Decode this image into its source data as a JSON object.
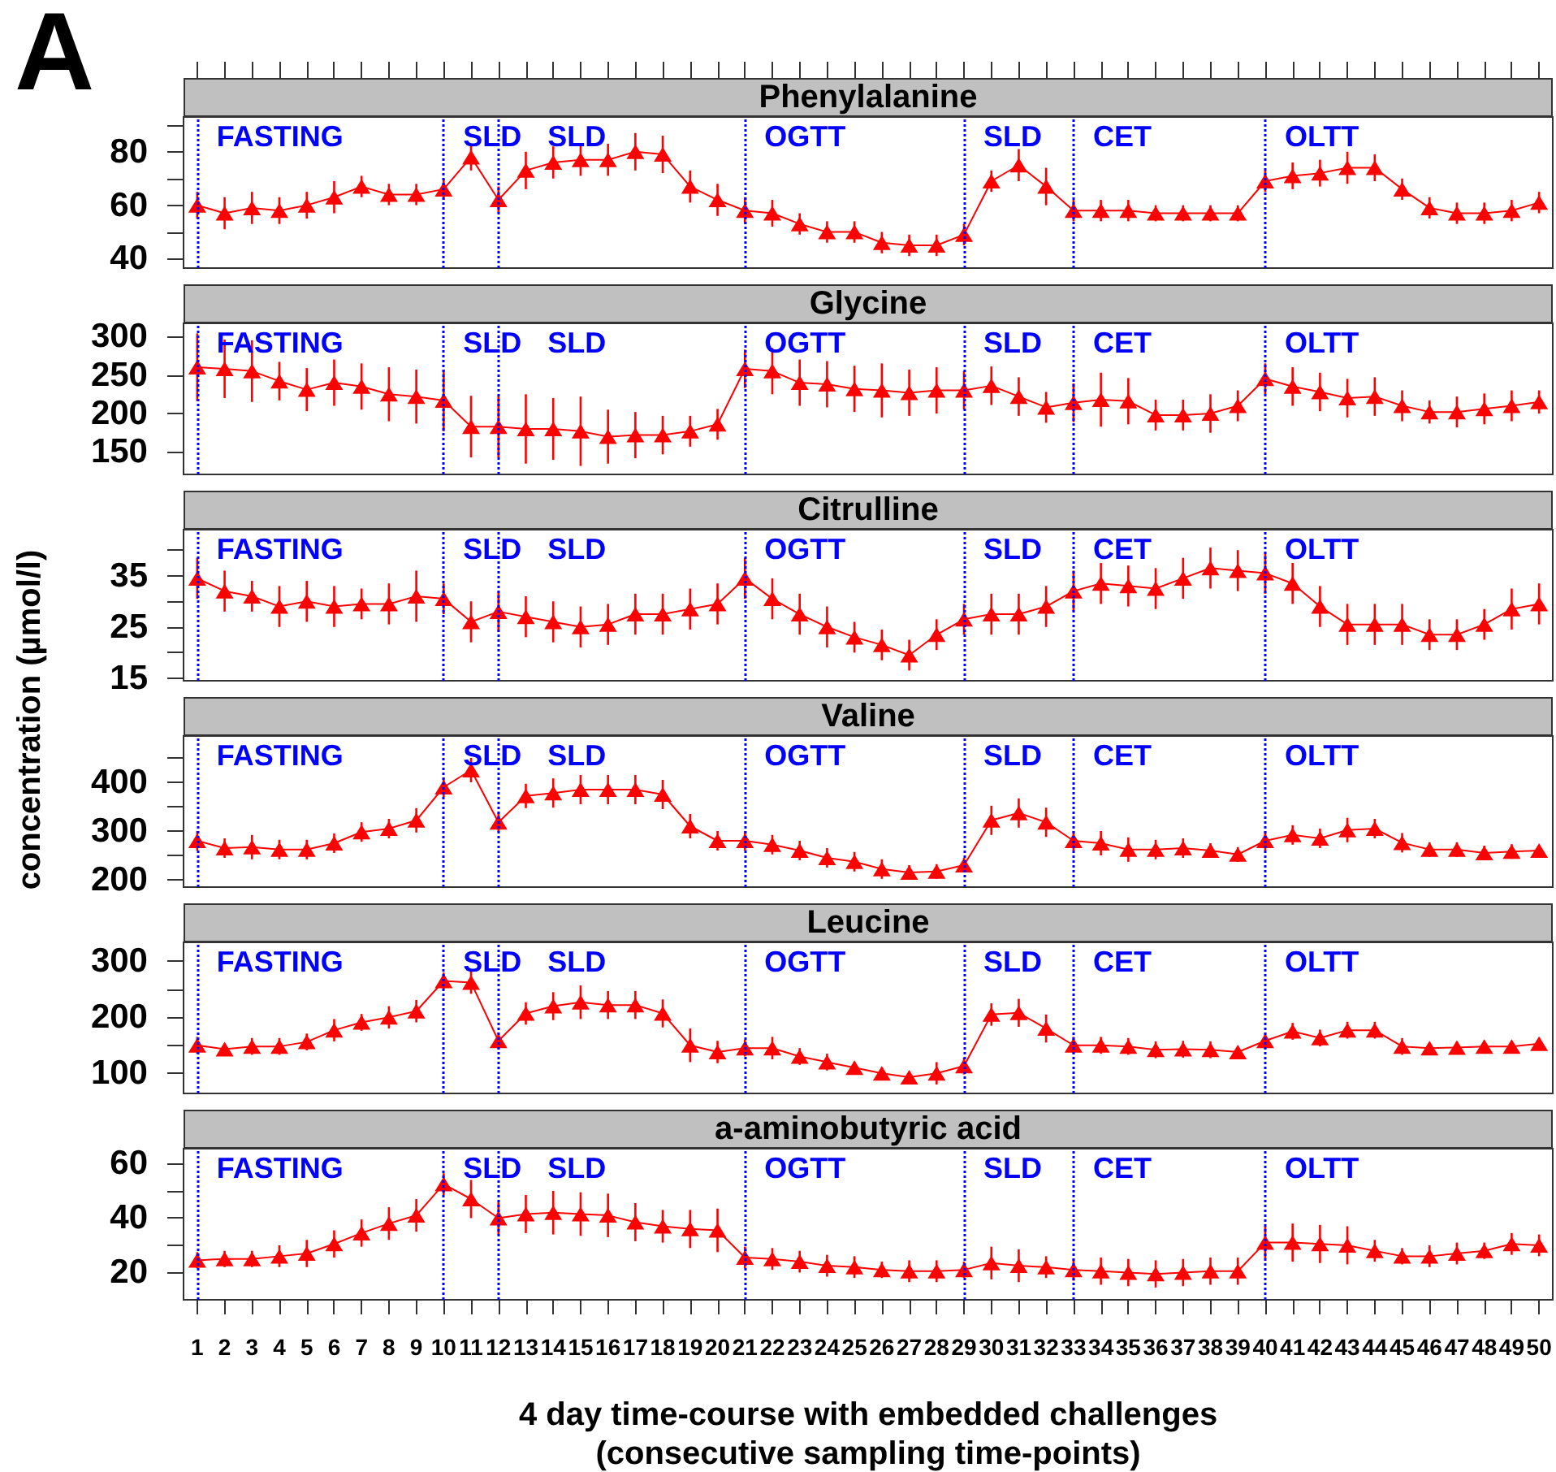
{
  "chart_data": [
    {
      "type": "line",
      "title": "Phenylalanine",
      "annotations": [
        "A"
      ],
      "x": [
        1,
        2,
        3,
        4,
        5,
        6,
        7,
        8,
        9,
        10,
        11,
        12,
        13,
        14,
        15,
        16,
        17,
        18,
        19,
        20,
        21,
        22,
        23,
        24,
        25,
        26,
        27,
        28,
        29,
        30,
        31,
        32,
        33,
        34,
        35,
        36,
        37,
        38,
        39,
        40,
        41,
        42,
        43,
        44,
        45,
        46,
        47,
        48,
        49,
        50
      ],
      "values": [
        60,
        57,
        59,
        58,
        60,
        63,
        67,
        64,
        64,
        66,
        78,
        62,
        73,
        76,
        77,
        77,
        80,
        79,
        67,
        62,
        58,
        57,
        53,
        50,
        50,
        46,
        45,
        45,
        49,
        69,
        75,
        67,
        58,
        58,
        58,
        57,
        57,
        57,
        57,
        69,
        71,
        72,
        74,
        74,
        66,
        59,
        57,
        57,
        58,
        61
      ],
      "errors": [
        5,
        6,
        6,
        5,
        5,
        6,
        4,
        4,
        4,
        4,
        5,
        5,
        7,
        6,
        6,
        6,
        7,
        7,
        6,
        6,
        5,
        5,
        4,
        4,
        4,
        4,
        4,
        4,
        4,
        4,
        6,
        7,
        4,
        4,
        4,
        3,
        3,
        3,
        3,
        4,
        5,
        5,
        6,
        5,
        4,
        4,
        4,
        4,
        4,
        4
      ],
      "color": "#ff0000",
      "marker": "triangle",
      "xlim": [
        0.5,
        50.5
      ],
      "xticks": [
        1,
        2,
        3,
        4,
        5,
        6,
        7,
        8,
        9,
        10,
        11,
        12,
        13,
        14,
        15,
        16,
        17,
        18,
        19,
        20,
        21,
        22,
        23,
        24,
        25,
        26,
        27,
        28,
        29,
        30,
        31,
        32,
        33,
        34,
        35,
        36,
        37,
        38,
        39,
        40,
        41,
        42,
        43,
        44,
        45,
        46,
        47,
        48,
        49,
        50
      ],
      "ylim": [
        36.5,
        93
      ],
      "yticks": [
        40,
        {
          "value": 50,
          "label": null
        },
        60,
        {
          "value": 70,
          "label": null
        },
        80,
        {
          "value": 90,
          "label": null
        }
      ],
      "ref_lines": [
        {
          "axis": "x",
          "value": 1,
          "label": "FASTING",
          "color": "#0000ff",
          "line_style": "dotted"
        },
        {
          "axis": "x",
          "value": 10,
          "label": "SLD",
          "color": "#0000ff",
          "line_style": "dotted"
        },
        {
          "axis": "x",
          "value": 12,
          "label": "SLD",
          "color": "#0000ff",
          "line_style": "dotted"
        },
        {
          "axis": "x",
          "value": 21,
          "label": "OGTT",
          "color": "#0000ff",
          "line_style": "dotted"
        },
        {
          "axis": "x",
          "value": 29,
          "label": "SLD",
          "color": "#0000ff",
          "line_style": "dotted"
        },
        {
          "axis": "x",
          "value": 33,
          "label": "CET",
          "color": "#0000ff",
          "line_style": "dotted"
        },
        {
          "axis": "x",
          "value": 40,
          "label": "OLTT",
          "color": "#0000ff",
          "line_style": "dotted"
        }
      ],
      "tick_labels": "y",
      "grid": false
    },
    {
      "type": "line",
      "title": "Glycine",
      "x": [
        1,
        2,
        3,
        4,
        5,
        6,
        7,
        8,
        9,
        10,
        11,
        12,
        13,
        14,
        15,
        16,
        17,
        18,
        19,
        20,
        21,
        22,
        23,
        24,
        25,
        26,
        27,
        28,
        29,
        30,
        31,
        32,
        33,
        34,
        35,
        36,
        37,
        38,
        39,
        40,
        41,
        42,
        43,
        44,
        45,
        46,
        47,
        48,
        49,
        50
      ],
      "values": [
        260,
        258,
        255,
        242,
        231,
        240,
        235,
        225,
        222,
        217,
        183,
        183,
        180,
        180,
        177,
        170,
        172,
        172,
        177,
        186,
        258,
        255,
        240,
        238,
        232,
        230,
        227,
        230,
        230,
        236,
        222,
        208,
        214,
        218,
        216,
        198,
        198,
        200,
        210,
        245,
        235,
        228,
        220,
        222,
        210,
        202,
        202,
        206,
        210,
        215
      ],
      "errors": [
        44,
        38,
        40,
        25,
        28,
        30,
        30,
        35,
        35,
        40,
        40,
        40,
        45,
        40,
        45,
        35,
        30,
        25,
        20,
        20,
        25,
        30,
        30,
        30,
        30,
        35,
        30,
        30,
        25,
        25,
        25,
        20,
        25,
        35,
        30,
        20,
        20,
        25,
        20,
        20,
        25,
        25,
        25,
        25,
        20,
        15,
        20,
        20,
        20,
        15
      ],
      "color": "#ff0000",
      "marker": "triangle",
      "xlim": [
        0.5,
        50.5
      ],
      "ylim": [
        121,
        317
      ],
      "yticks": [
        150,
        200,
        250,
        300
      ],
      "ref_lines": [
        {
          "axis": "x",
          "value": 1,
          "label": "FASTING",
          "color": "#0000ff",
          "line_style": "dotted"
        },
        {
          "axis": "x",
          "value": 10,
          "label": "SLD",
          "color": "#0000ff",
          "line_style": "dotted"
        },
        {
          "axis": "x",
          "value": 12,
          "label": "SLD",
          "color": "#0000ff",
          "line_style": "dotted"
        },
        {
          "axis": "x",
          "value": 21,
          "label": "OGTT",
          "color": "#0000ff",
          "line_style": "dotted"
        },
        {
          "axis": "x",
          "value": 29,
          "label": "SLD",
          "color": "#0000ff",
          "line_style": "dotted"
        },
        {
          "axis": "x",
          "value": 33,
          "label": "CET",
          "color": "#0000ff",
          "line_style": "dotted"
        },
        {
          "axis": "x",
          "value": 40,
          "label": "OLTT",
          "color": "#0000ff",
          "line_style": "dotted"
        }
      ],
      "tick_labels": "y",
      "grid": false
    },
    {
      "type": "line",
      "title": "Citrulline",
      "x": [
        1,
        2,
        3,
        4,
        5,
        6,
        7,
        8,
        9,
        10,
        11,
        12,
        13,
        14,
        15,
        16,
        17,
        18,
        19,
        20,
        21,
        22,
        23,
        24,
        25,
        26,
        27,
        28,
        29,
        30,
        31,
        32,
        33,
        34,
        35,
        36,
        37,
        38,
        39,
        40,
        41,
        42,
        43,
        44,
        45,
        46,
        47,
        48,
        49,
        50
      ],
      "values": [
        34.5,
        32,
        31,
        29,
        30,
        29,
        29.5,
        29.5,
        31,
        30.5,
        26,
        28,
        27,
        26,
        25,
        25.5,
        27.5,
        27.5,
        28.5,
        29.5,
        34.5,
        30.5,
        27.5,
        25,
        23,
        21.5,
        19.5,
        23.5,
        26.5,
        27.5,
        27.5,
        29,
        32,
        33.5,
        33,
        32.5,
        34.5,
        36.5,
        36,
        35.5,
        33.5,
        29,
        25.5,
        25.5,
        25.5,
        23.5,
        23.5,
        25.5,
        28.5,
        29.5
      ],
      "errors": [
        4,
        4,
        3,
        4,
        4,
        4,
        3,
        4,
        5,
        3,
        4,
        4,
        4,
        4,
        4,
        4,
        4,
        4,
        4,
        4,
        4,
        4,
        4,
        4,
        3,
        3,
        3,
        3,
        3,
        4,
        4,
        4,
        4,
        4,
        4,
        4,
        4,
        4,
        4,
        4,
        4,
        4,
        4,
        4,
        4,
        3,
        3,
        3,
        4,
        4
      ],
      "color": "#ff0000",
      "marker": "triangle",
      "xlim": [
        0.5,
        50.5
      ],
      "ylim": [
        14.5,
        44
      ],
      "yticks": [
        15,
        {
          "value": 20,
          "label": null
        },
        25,
        {
          "value": 30,
          "label": null
        },
        35,
        {
          "value": 40,
          "label": null
        }
      ],
      "ref_lines": [
        {
          "axis": "x",
          "value": 1,
          "label": "FASTING",
          "color": "#0000ff",
          "line_style": "dotted"
        },
        {
          "axis": "x",
          "value": 10,
          "label": "SLD",
          "color": "#0000ff",
          "line_style": "dotted"
        },
        {
          "axis": "x",
          "value": 12,
          "label": "SLD",
          "color": "#0000ff",
          "line_style": "dotted"
        },
        {
          "axis": "x",
          "value": 21,
          "label": "OGTT",
          "color": "#0000ff",
          "line_style": "dotted"
        },
        {
          "axis": "x",
          "value": 29,
          "label": "SLD",
          "color": "#0000ff",
          "line_style": "dotted"
        },
        {
          "axis": "x",
          "value": 33,
          "label": "CET",
          "color": "#0000ff",
          "line_style": "dotted"
        },
        {
          "axis": "x",
          "value": 40,
          "label": "OLTT",
          "color": "#0000ff",
          "line_style": "dotted"
        }
      ],
      "tick_labels": "y",
      "grid": false
    },
    {
      "type": "line",
      "title": "Valine",
      "ylabel": "concentration (µmol/l)",
      "x": [
        1,
        2,
        3,
        4,
        5,
        6,
        7,
        8,
        9,
        10,
        11,
        12,
        13,
        14,
        15,
        16,
        17,
        18,
        19,
        20,
        21,
        22,
        23,
        24,
        25,
        26,
        27,
        28,
        29,
        30,
        31,
        32,
        33,
        34,
        35,
        36,
        37,
        38,
        39,
        40,
        41,
        42,
        43,
        44,
        45,
        46,
        47,
        48,
        49,
        50
      ],
      "values": [
        280,
        265,
        267,
        262,
        262,
        275,
        298,
        305,
        322,
        390,
        425,
        318,
        372,
        378,
        385,
        385,
        385,
        375,
        310,
        280,
        280,
        272,
        260,
        245,
        237,
        222,
        215,
        217,
        230,
        322,
        337,
        318,
        280,
        275,
        262,
        262,
        265,
        260,
        252,
        280,
        292,
        285,
        302,
        305,
        276,
        262,
        262,
        255,
        258,
        260
      ],
      "errors": [
        20,
        20,
        25,
        20,
        20,
        20,
        20,
        20,
        25,
        20,
        25,
        20,
        25,
        30,
        30,
        30,
        30,
        30,
        25,
        20,
        20,
        20,
        20,
        20,
        20,
        20,
        15,
        15,
        15,
        30,
        30,
        30,
        20,
        25,
        25,
        20,
        20,
        15,
        15,
        20,
        20,
        20,
        25,
        20,
        20,
        15,
        15,
        15,
        15,
        10
      ],
      "color": "#ff0000",
      "marker": "triangle",
      "xlim": [
        0.5,
        50.5
      ],
      "ylim": [
        185,
        495
      ],
      "yticks": [
        200,
        {
          "value": 250,
          "label": null
        },
        300,
        {
          "value": 350,
          "label": null
        },
        400,
        {
          "value": 450,
          "label": null
        }
      ],
      "ref_lines": [
        {
          "axis": "x",
          "value": 1,
          "label": "FASTING",
          "color": "#0000ff",
          "line_style": "dotted"
        },
        {
          "axis": "x",
          "value": 10,
          "label": "SLD",
          "color": "#0000ff",
          "line_style": "dotted"
        },
        {
          "axis": "x",
          "value": 12,
          "label": "SLD",
          "color": "#0000ff",
          "line_style": "dotted"
        },
        {
          "axis": "x",
          "value": 21,
          "label": "OGTT",
          "color": "#0000ff",
          "line_style": "dotted"
        },
        {
          "axis": "x",
          "value": 29,
          "label": "SLD",
          "color": "#0000ff",
          "line_style": "dotted"
        },
        {
          "axis": "x",
          "value": 33,
          "label": "CET",
          "color": "#0000ff",
          "line_style": "dotted"
        },
        {
          "axis": "x",
          "value": 40,
          "label": "OLTT",
          "color": "#0000ff",
          "line_style": "dotted"
        }
      ],
      "tick_labels": "y",
      "grid": false
    },
    {
      "type": "line",
      "title": "Leucine",
      "x": [
        1,
        2,
        3,
        4,
        5,
        6,
        7,
        8,
        9,
        10,
        11,
        12,
        13,
        14,
        15,
        16,
        17,
        18,
        19,
        20,
        21,
        22,
        23,
        24,
        25,
        26,
        27,
        28,
        29,
        30,
        31,
        32,
        33,
        34,
        35,
        36,
        37,
        38,
        39,
        40,
        41,
        42,
        43,
        44,
        45,
        46,
        47,
        48,
        49,
        50
      ],
      "values": [
        150,
        143,
        148,
        148,
        156,
        177,
        191,
        200,
        211,
        265,
        262,
        158,
        207,
        220,
        227,
        222,
        222,
        207,
        150,
        138,
        145,
        145,
        130,
        120,
        110,
        100,
        93,
        100,
        113,
        205,
        208,
        180,
        150,
        150,
        148,
        142,
        143,
        142,
        138,
        158,
        175,
        163,
        177,
        177,
        148,
        145,
        146,
        148,
        148,
        153
      ],
      "errors": [
        15,
        10,
        15,
        15,
        15,
        20,
        15,
        20,
        20,
        15,
        20,
        15,
        20,
        25,
        30,
        25,
        25,
        25,
        30,
        20,
        15,
        20,
        15,
        15,
        10,
        10,
        10,
        20,
        15,
        20,
        25,
        25,
        15,
        15,
        15,
        15,
        15,
        15,
        10,
        15,
        15,
        15,
        15,
        15,
        15,
        10,
        10,
        10,
        10,
        10
      ],
      "color": "#ff0000",
      "marker": "triangle",
      "xlim": [
        0.5,
        50.5
      ],
      "ylim": [
        64,
        334
      ],
      "yticks": [
        100,
        {
          "value": 150,
          "label": null
        },
        200,
        {
          "value": 250,
          "label": null
        },
        300
      ],
      "ref_lines": [
        {
          "axis": "x",
          "value": 1,
          "label": "FASTING",
          "color": "#0000ff",
          "line_style": "dotted"
        },
        {
          "axis": "x",
          "value": 10,
          "label": "SLD",
          "color": "#0000ff",
          "line_style": "dotted"
        },
        {
          "axis": "x",
          "value": 12,
          "label": "SLD",
          "color": "#0000ff",
          "line_style": "dotted"
        },
        {
          "axis": "x",
          "value": 21,
          "label": "OGTT",
          "color": "#0000ff",
          "line_style": "dotted"
        },
        {
          "axis": "x",
          "value": 29,
          "label": "SLD",
          "color": "#0000ff",
          "line_style": "dotted"
        },
        {
          "axis": "x",
          "value": 33,
          "label": "CET",
          "color": "#0000ff",
          "line_style": "dotted"
        },
        {
          "axis": "x",
          "value": 40,
          "label": "OLTT",
          "color": "#0000ff",
          "line_style": "dotted"
        }
      ],
      "tick_labels": "y",
      "grid": false
    },
    {
      "type": "line",
      "title": "a-aminobutyric acid",
      "xlabel": "4 day time-course with embedded challenges\n(consecutive sampling time-points)",
      "x": [
        1,
        2,
        3,
        4,
        5,
        6,
        7,
        8,
        9,
        10,
        11,
        12,
        13,
        14,
        15,
        16,
        17,
        18,
        19,
        20,
        21,
        22,
        23,
        24,
        25,
        26,
        27,
        28,
        29,
        30,
        31,
        32,
        33,
        34,
        35,
        36,
        37,
        38,
        39,
        40,
        41,
        42,
        43,
        44,
        45,
        46,
        47,
        48,
        49,
        50
      ],
      "values": [
        24.5,
        25,
        25,
        26,
        27,
        30.5,
        34.5,
        38,
        41,
        52.5,
        47,
        40,
        41.5,
        42,
        41.5,
        41,
        38.5,
        37,
        36,
        35.5,
        25.5,
        25,
        24,
        22.5,
        22,
        21,
        20.5,
        20.5,
        21,
        23.5,
        22.5,
        22,
        21,
        20.5,
        20,
        19.5,
        20,
        20.5,
        20.5,
        31,
        31,
        30.5,
        30,
        28,
        26,
        26,
        27,
        28,
        30.5,
        30
      ],
      "errors": [
        3,
        3,
        3,
        4,
        5,
        5,
        5,
        6,
        6,
        4,
        7,
        6,
        7,
        8,
        8,
        8,
        7,
        6,
        7,
        8,
        4,
        4,
        4,
        4,
        4,
        3,
        4,
        4,
        3,
        6,
        6,
        4,
        4,
        5,
        5,
        5,
        5,
        5,
        5,
        6,
        7,
        7,
        7,
        4,
        3,
        4,
        4,
        3,
        4,
        4
      ],
      "color": "#ff0000",
      "marker": "triangle",
      "xlim": [
        0.5,
        50.5
      ],
      "xticks": [
        1,
        2,
        3,
        4,
        5,
        6,
        7,
        8,
        9,
        10,
        11,
        12,
        13,
        14,
        15,
        16,
        17,
        18,
        19,
        20,
        21,
        22,
        23,
        24,
        25,
        26,
        27,
        28,
        29,
        30,
        31,
        32,
        33,
        34,
        35,
        36,
        37,
        38,
        39,
        40,
        41,
        42,
        43,
        44,
        45,
        46,
        47,
        48,
        49,
        50
      ],
      "ylim": [
        10,
        65.5
      ],
      "yticks": [
        20,
        {
          "value": 30,
          "label": null
        },
        40,
        {
          "value": 50,
          "label": null
        },
        60
      ],
      "ref_lines": [
        {
          "axis": "x",
          "value": 1,
          "label": "FASTING",
          "color": "#0000ff",
          "line_style": "dotted"
        },
        {
          "axis": "x",
          "value": 10,
          "label": "SLD",
          "color": "#0000ff",
          "line_style": "dotted"
        },
        {
          "axis": "x",
          "value": 12,
          "label": "SLD",
          "color": "#0000ff",
          "line_style": "dotted"
        },
        {
          "axis": "x",
          "value": 21,
          "label": "OGTT",
          "color": "#0000ff",
          "line_style": "dotted"
        },
        {
          "axis": "x",
          "value": 29,
          "label": "SLD",
          "color": "#0000ff",
          "line_style": "dotted"
        },
        {
          "axis": "x",
          "value": 33,
          "label": "CET",
          "color": "#0000ff",
          "line_style": "dotted"
        },
        {
          "axis": "x",
          "value": 40,
          "label": "OLTT",
          "color": "#0000ff",
          "line_style": "dotted"
        }
      ],
      "grid": false
    }
  ]
}
